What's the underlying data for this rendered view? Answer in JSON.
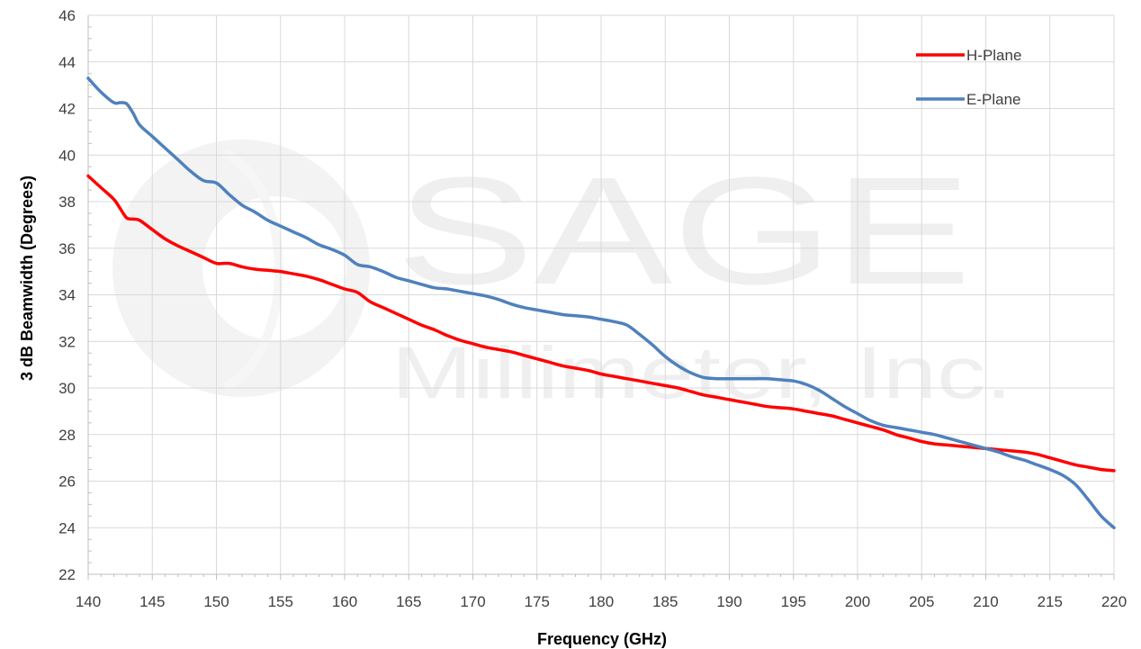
{
  "watermark": {
    "line1": "SAGE",
    "line2": "Millimeter, Inc."
  },
  "chart_data": {
    "type": "line",
    "xlabel": "Frequency (GHz)",
    "ylabel": "3 dB Beamwidth (Degrees)",
    "xlim": [
      140,
      220
    ],
    "ylim": [
      22,
      46
    ],
    "xticks": [
      140,
      145,
      150,
      155,
      160,
      165,
      170,
      175,
      180,
      185,
      190,
      195,
      200,
      205,
      210,
      215,
      220
    ],
    "yticks": [
      22,
      24,
      26,
      28,
      30,
      32,
      34,
      36,
      38,
      40,
      42,
      44,
      46
    ],
    "grid": true,
    "legend_position": "top-right",
    "series": [
      {
        "name": "H-Plane",
        "color": "#ff0000",
        "x": [
          140,
          141,
          142,
          142.5,
          143,
          143.5,
          144,
          145,
          146,
          147,
          148,
          149,
          150,
          151,
          152,
          153,
          154,
          155,
          156,
          157,
          158,
          159,
          160,
          161,
          162,
          163,
          164,
          165,
          166,
          167,
          168,
          169,
          170,
          171,
          172,
          173,
          174,
          175,
          176,
          177,
          178,
          179,
          180,
          181,
          182,
          183,
          184,
          185,
          186,
          187,
          188,
          189,
          190,
          191,
          192,
          193,
          194,
          195,
          196,
          197,
          198,
          199,
          200,
          201,
          202,
          203,
          204,
          205,
          206,
          207,
          208,
          209,
          210,
          211,
          212,
          213,
          214,
          215,
          216,
          217,
          218,
          219,
          220
        ],
        "y": [
          39.1,
          38.6,
          38.1,
          37.7,
          37.3,
          37.25,
          37.2,
          36.8,
          36.4,
          36.1,
          35.85,
          35.6,
          35.35,
          35.35,
          35.2,
          35.1,
          35.05,
          35.0,
          34.9,
          34.8,
          34.65,
          34.45,
          34.25,
          34.1,
          33.7,
          33.45,
          33.2,
          32.95,
          32.7,
          32.5,
          32.25,
          32.05,
          31.9,
          31.75,
          31.65,
          31.55,
          31.4,
          31.25,
          31.1,
          30.95,
          30.85,
          30.75,
          30.6,
          30.5,
          30.4,
          30.3,
          30.2,
          30.1,
          30.0,
          29.85,
          29.7,
          29.6,
          29.5,
          29.4,
          29.3,
          29.2,
          29.15,
          29.1,
          29.0,
          28.9,
          28.8,
          28.65,
          28.5,
          28.35,
          28.2,
          28.0,
          27.85,
          27.7,
          27.6,
          27.55,
          27.5,
          27.45,
          27.4,
          27.35,
          27.3,
          27.25,
          27.15,
          27.0,
          26.85,
          26.7,
          26.6,
          26.5,
          26.45
        ]
      },
      {
        "name": "E-Plane",
        "color": "#4f81bd",
        "x": [
          140,
          141,
          142,
          142.5,
          143,
          143.5,
          144,
          145,
          146,
          147,
          148,
          149,
          150,
          151,
          152,
          153,
          154,
          155,
          156,
          157,
          158,
          159,
          160,
          161,
          162,
          163,
          164,
          165,
          166,
          167,
          168,
          169,
          170,
          171,
          172,
          173,
          174,
          175,
          176,
          177,
          178,
          179,
          180,
          181,
          182,
          183,
          184,
          185,
          186,
          187,
          188,
          189,
          190,
          191,
          192,
          193,
          194,
          195,
          196,
          197,
          198,
          199,
          200,
          201,
          202,
          203,
          204,
          205,
          206,
          207,
          208,
          209,
          210,
          211,
          212,
          213,
          214,
          215,
          216,
          217,
          218,
          219,
          220
        ],
        "y": [
          43.3,
          42.7,
          42.25,
          42.25,
          42.2,
          41.8,
          41.3,
          40.8,
          40.3,
          39.8,
          39.3,
          38.9,
          38.8,
          38.3,
          37.85,
          37.55,
          37.2,
          36.95,
          36.7,
          36.45,
          36.15,
          35.95,
          35.7,
          35.3,
          35.2,
          35.0,
          34.75,
          34.6,
          34.45,
          34.3,
          34.25,
          34.15,
          34.05,
          33.95,
          33.8,
          33.6,
          33.45,
          33.35,
          33.25,
          33.15,
          33.1,
          33.05,
          32.95,
          32.85,
          32.7,
          32.3,
          31.85,
          31.35,
          30.95,
          30.65,
          30.45,
          30.4,
          30.4,
          30.4,
          30.4,
          30.4,
          30.35,
          30.3,
          30.15,
          29.9,
          29.55,
          29.2,
          28.9,
          28.6,
          28.4,
          28.3,
          28.2,
          28.1,
          28.0,
          27.85,
          27.7,
          27.55,
          27.4,
          27.25,
          27.05,
          26.9,
          26.7,
          26.5,
          26.25,
          25.85,
          25.2,
          24.5,
          24.0
        ]
      }
    ]
  }
}
